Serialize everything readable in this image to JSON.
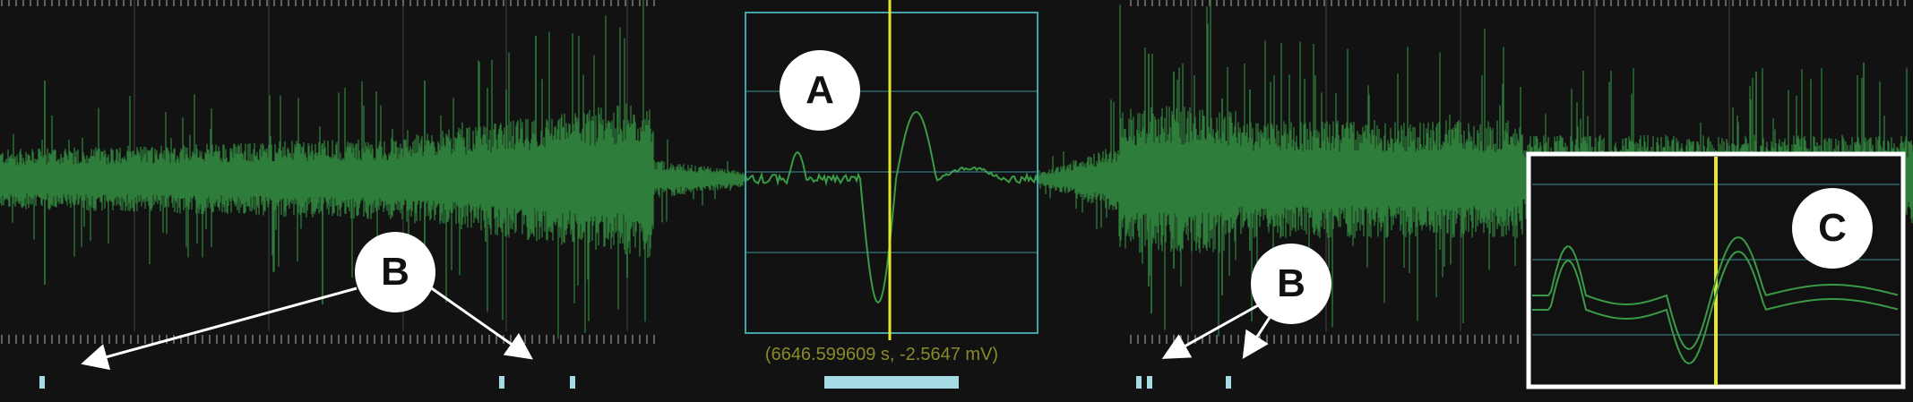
{
  "readout": {
    "time_s": 6646.599609,
    "amplitude_mV": -2.5647,
    "text": "(6646.599609 s,  -2.5647 mV)"
  },
  "callouts": {
    "a": "A",
    "b1": "B",
    "b2": "B",
    "c": "C"
  },
  "colors": {
    "background": "#121212",
    "signal": "#2f7d3a",
    "signal_detail": "#3a9a46",
    "cursor": "#e6e62a",
    "selection_box": "#43a3a8",
    "markers": "#a6dbe6",
    "readout_text": "#8a8a2a",
    "annotation": "#ffffff"
  }
}
